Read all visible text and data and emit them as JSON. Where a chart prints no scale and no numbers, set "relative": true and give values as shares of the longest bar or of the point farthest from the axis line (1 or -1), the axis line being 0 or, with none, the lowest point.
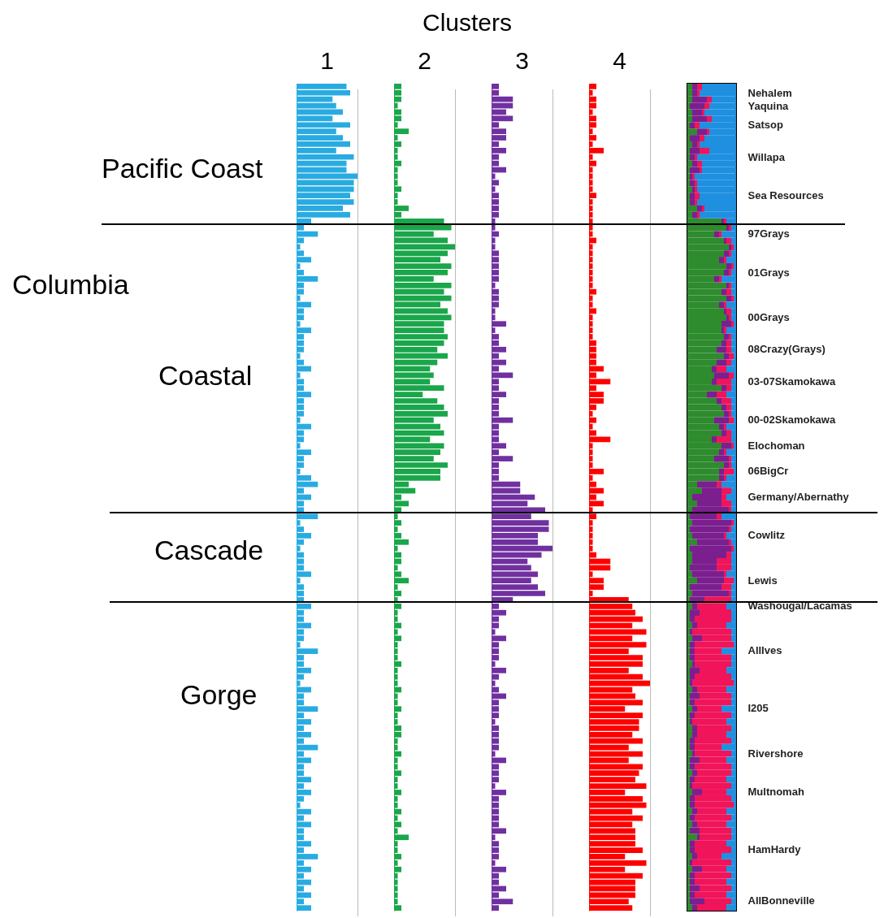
{
  "chart_data": [
    {
      "type": "bar",
      "orientation": "horizontal",
      "relative": true,
      "tick_labels": false,
      "title": "1",
      "color": "#29abe2",
      "annotations": [
        "Clusters",
        "Pacific Coast",
        "Columbia",
        "Coastal",
        "Cascade",
        "Gorge"
      ],
      "categories": [
        null,
        null,
        null,
        null,
        null,
        null,
        null,
        null,
        null,
        null,
        null,
        null,
        null,
        null,
        null,
        null,
        null,
        null,
        null,
        null,
        null,
        null,
        null,
        null,
        null,
        null,
        null,
        null,
        null,
        null,
        null,
        null,
        null,
        null,
        null,
        null,
        null,
        null,
        null,
        null,
        null,
        null,
        null,
        null,
        null,
        null,
        null,
        null,
        null,
        null,
        null,
        null,
        null,
        null,
        null,
        null,
        null,
        null,
        null,
        null,
        null,
        null,
        null,
        null,
        null,
        null,
        null,
        null,
        null,
        null,
        null,
        null,
        null,
        null,
        null,
        null,
        null,
        null,
        null,
        null,
        null,
        null,
        null,
        null,
        null,
        null,
        null,
        null,
        null,
        null,
        null,
        null,
        null,
        null,
        null,
        null,
        null,
        null,
        null,
        null,
        null,
        null,
        null,
        null,
        null,
        null,
        null,
        null,
        null,
        null,
        null,
        null,
        null,
        null,
        null,
        null,
        null,
        null,
        null,
        null,
        null,
        null,
        null,
        null,
        null,
        null,
        null,
        null,
        null
      ],
      "values": [
        0.82,
        0.88,
        0.59,
        0.65,
        0.76,
        0.59,
        0.88,
        0.65,
        0.76,
        0.88,
        0.65,
        0.94,
        0.82,
        0.82,
        1,
        0.94,
        0.94,
        0.88,
        0.94,
        0.76,
        0.88,
        0.24,
        0.12,
        0.35,
        0.12,
        0.06,
        0.12,
        0.24,
        0.06,
        0.12,
        0.35,
        0.12,
        0.12,
        0.06,
        0.24,
        0.12,
        0.12,
        0.06,
        0.24,
        0.12,
        0.12,
        0.12,
        0.06,
        0.12,
        0.24,
        0.06,
        0.12,
        0.12,
        0.24,
        0.12,
        0.12,
        0.12,
        0.06,
        0.24,
        0.12,
        0.12,
        0.06,
        0.24,
        0.12,
        0.12,
        0.06,
        0.24,
        0.35,
        0.12,
        0.24,
        0.12,
        0.12,
        0.35,
        0.06,
        0.12,
        0.24,
        0.12,
        0.06,
        0.12,
        0.12,
        0.12,
        0.24,
        0.06,
        0.12,
        0.12,
        0.12,
        0.24,
        0.12,
        0.12,
        0.24,
        0.12,
        0.12,
        0.06,
        0.35,
        0.12,
        0.12,
        0.24,
        0.12,
        0.06,
        0.24,
        0.12,
        0.12,
        0.35,
        0.12,
        0.24,
        0.12,
        0.24,
        0.12,
        0.35,
        0.12,
        0.24,
        0.12,
        0.12,
        0.24,
        0.12,
        0.24,
        0.12,
        0.06,
        0.24,
        0.12,
        0.24,
        0.12,
        0.12,
        0.24,
        0.12,
        0.35,
        0.12,
        0.24,
        0.12,
        0.24,
        0.12,
        0.24,
        0.12,
        0.24
      ]
    },
    {
      "type": "bar",
      "orientation": "horizontal",
      "relative": true,
      "tick_labels": false,
      "title": "2",
      "color": "#1aa64a",
      "categories": [
        null,
        null,
        null,
        null,
        null,
        null,
        null,
        null,
        null,
        null,
        null,
        null,
        null,
        null,
        null,
        null,
        null,
        null,
        null,
        null,
        null,
        null,
        null,
        null,
        null,
        null,
        null,
        null,
        null,
        null,
        null,
        null,
        null,
        null,
        null,
        null,
        null,
        null,
        null,
        null,
        null,
        null,
        null,
        null,
        null,
        null,
        null,
        null,
        null,
        null,
        null,
        null,
        null,
        null,
        null,
        null,
        null,
        null,
        null,
        null,
        null,
        null,
        null,
        null,
        null,
        null,
        null,
        null,
        null,
        null,
        null,
        null,
        null,
        null,
        null,
        null,
        null,
        null,
        null,
        null,
        null,
        null,
        null,
        null,
        null,
        null,
        null,
        null,
        null,
        null,
        null,
        null,
        null,
        null,
        null,
        null,
        null,
        null,
        null,
        null,
        null,
        null,
        null,
        null,
        null,
        null,
        null,
        null,
        null,
        null,
        null,
        null,
        null,
        null,
        null,
        null,
        null,
        null,
        null,
        null,
        null,
        null,
        null,
        null,
        null,
        null,
        null,
        null,
        null
      ],
      "values": [
        0.12,
        0.12,
        0.12,
        0.06,
        0.12,
        0.12,
        0.06,
        0.24,
        0.06,
        0.12,
        0.06,
        0.06,
        0.12,
        0.06,
        0.06,
        0.06,
        0.12,
        0.06,
        0.06,
        0.24,
        0.12,
        0.82,
        0.94,
        0.65,
        0.88,
        1,
        0.88,
        0.76,
        0.94,
        0.88,
        0.65,
        0.94,
        0.82,
        0.94,
        0.76,
        0.88,
        0.94,
        0.82,
        0.82,
        0.88,
        0.82,
        0.71,
        0.88,
        0.71,
        0.59,
        0.65,
        0.59,
        0.82,
        0.47,
        0.71,
        0.82,
        0.88,
        0.65,
        0.76,
        0.82,
        0.59,
        0.82,
        0.76,
        0.65,
        0.88,
        0.76,
        0.76,
        0.24,
        0.35,
        0.12,
        0.24,
        0.12,
        0.06,
        0.12,
        0.06,
        0.12,
        0.24,
        0.06,
        0.12,
        0.12,
        0.06,
        0.12,
        0.24,
        0.06,
        0.12,
        0.06,
        0.12,
        0.06,
        0.06,
        0.12,
        0.06,
        0.12,
        0.06,
        0.06,
        0.06,
        0.12,
        0.06,
        0.06,
        0.06,
        0.12,
        0.06,
        0.06,
        0.12,
        0.06,
        0.06,
        0.12,
        0.12,
        0.06,
        0.06,
        0.12,
        0.06,
        0.06,
        0.12,
        0.06,
        0.06,
        0.12,
        0.06,
        0.06,
        0.12,
        0.06,
        0.12,
        0.06,
        0.24,
        0.06,
        0.06,
        0.12,
        0.06,
        0.12,
        0.06,
        0.06,
        0.06,
        0.06,
        0.06,
        0.12
      ]
    },
    {
      "type": "bar",
      "orientation": "horizontal",
      "relative": true,
      "tick_labels": false,
      "title": "3",
      "color": "#7030a0",
      "categories": [
        null,
        null,
        null,
        null,
        null,
        null,
        null,
        null,
        null,
        null,
        null,
        null,
        null,
        null,
        null,
        null,
        null,
        null,
        null,
        null,
        null,
        null,
        null,
        null,
        null,
        null,
        null,
        null,
        null,
        null,
        null,
        null,
        null,
        null,
        null,
        null,
        null,
        null,
        null,
        null,
        null,
        null,
        null,
        null,
        null,
        null,
        null,
        null,
        null,
        null,
        null,
        null,
        null,
        null,
        null,
        null,
        null,
        null,
        null,
        null,
        null,
        null,
        null,
        null,
        null,
        null,
        null,
        null,
        null,
        null,
        null,
        null,
        null,
        null,
        null,
        null,
        null,
        null,
        null,
        null,
        null,
        null,
        null,
        null,
        null,
        null,
        null,
        null,
        null,
        null,
        null,
        null,
        null,
        null,
        null,
        null,
        null,
        null,
        null,
        null,
        null,
        null,
        null,
        null,
        null,
        null,
        null,
        null,
        null,
        null,
        null,
        null,
        null,
        null,
        null,
        null,
        null,
        null,
        null,
        null,
        null,
        null,
        null,
        null,
        null,
        null,
        null,
        null,
        null
      ],
      "values": [
        0.12,
        0.12,
        0.35,
        0.35,
        0.24,
        0.35,
        0.12,
        0.24,
        0.24,
        0.12,
        0.24,
        0.12,
        0.12,
        0.24,
        0.06,
        0.12,
        0.06,
        0.12,
        0.12,
        0.12,
        0.12,
        0.06,
        0.06,
        0.12,
        0.06,
        0.06,
        0.12,
        0.12,
        0.12,
        0.12,
        0.12,
        0.06,
        0.12,
        0.12,
        0.12,
        0.06,
        0.06,
        0.24,
        0.06,
        0.12,
        0.12,
        0.24,
        0.12,
        0.24,
        0.12,
        0.35,
        0.12,
        0.12,
        0.24,
        0.12,
        0.12,
        0.12,
        0.35,
        0.12,
        0.12,
        0.12,
        0.24,
        0.12,
        0.35,
        0.12,
        0.12,
        0.12,
        0.47,
        0.47,
        0.71,
        0.59,
        0.88,
        0.65,
        0.94,
        0.94,
        0.76,
        0.76,
        1,
        0.82,
        0.59,
        0.65,
        0.76,
        0.65,
        0.76,
        0.88,
        0.35,
        0.12,
        0.24,
        0.12,
        0.12,
        0.06,
        0.24,
        0.12,
        0.12,
        0.12,
        0.06,
        0.24,
        0.12,
        0.06,
        0.12,
        0.24,
        0.12,
        0.12,
        0.12,
        0.06,
        0.12,
        0.12,
        0.12,
        0.12,
        0.06,
        0.24,
        0.12,
        0.12,
        0.12,
        0.06,
        0.24,
        0.12,
        0.12,
        0.12,
        0.12,
        0.12,
        0.24,
        0.06,
        0.12,
        0.12,
        0.12,
        0.06,
        0.24,
        0.12,
        0.12,
        0.24,
        0.12,
        0.35,
        0.12
      ]
    },
    {
      "type": "bar",
      "orientation": "horizontal",
      "relative": true,
      "tick_labels": false,
      "title": "4",
      "color": "#ff0000",
      "categories": [
        null,
        null,
        null,
        null,
        null,
        null,
        null,
        null,
        null,
        null,
        null,
        null,
        null,
        null,
        null,
        null,
        null,
        null,
        null,
        null,
        null,
        null,
        null,
        null,
        null,
        null,
        null,
        null,
        null,
        null,
        null,
        null,
        null,
        null,
        null,
        null,
        null,
        null,
        null,
        null,
        null,
        null,
        null,
        null,
        null,
        null,
        null,
        null,
        null,
        null,
        null,
        null,
        null,
        null,
        null,
        null,
        null,
        null,
        null,
        null,
        null,
        null,
        null,
        null,
        null,
        null,
        null,
        null,
        null,
        null,
        null,
        null,
        null,
        null,
        null,
        null,
        null,
        null,
        null,
        null,
        null,
        null,
        null,
        null,
        null,
        null,
        null,
        null,
        null,
        null,
        null,
        null,
        null,
        null,
        null,
        null,
        null,
        null,
        null,
        null,
        null,
        null,
        null,
        null,
        null,
        null,
        null,
        null,
        null,
        null,
        null,
        null,
        null,
        null,
        null,
        null,
        null,
        null,
        null,
        null,
        null,
        null,
        null,
        null,
        null,
        null,
        null,
        null,
        null
      ],
      "values": [
        0.12,
        0.06,
        0.12,
        0.12,
        0.06,
        0.12,
        0.12,
        0.06,
        0.12,
        0.06,
        0.24,
        0.06,
        0.12,
        0.06,
        0.06,
        0.06,
        0.06,
        0.12,
        0.06,
        0.06,
        0.06,
        0.06,
        0.06,
        0.06,
        0.12,
        0.06,
        0.06,
        0.06,
        0.06,
        0.06,
        0.06,
        0.06,
        0.12,
        0.06,
        0.06,
        0.12,
        0.06,
        0.06,
        0.06,
        0.06,
        0.12,
        0.12,
        0.12,
        0.12,
        0.24,
        0.12,
        0.35,
        0.12,
        0.24,
        0.24,
        0.12,
        0.06,
        0.12,
        0.06,
        0.12,
        0.35,
        0.06,
        0.06,
        0.06,
        0.06,
        0.24,
        0.06,
        0.12,
        0.24,
        0.12,
        0.24,
        0.06,
        0.12,
        0.06,
        0.06,
        0.06,
        0.06,
        0.06,
        0.12,
        0.35,
        0.35,
        0.06,
        0.24,
        0.24,
        0.06,
        0.65,
        0.71,
        0.76,
        0.88,
        0.71,
        0.94,
        0.71,
        0.94,
        0.65,
        0.88,
        0.88,
        0.65,
        0.88,
        1,
        0.71,
        0.76,
        0.88,
        0.59,
        0.88,
        0.82,
        0.82,
        0.71,
        0.88,
        0.65,
        0.88,
        0.65,
        0.88,
        0.82,
        0.76,
        0.94,
        0.59,
        0.88,
        0.94,
        0.71,
        0.88,
        0.71,
        0.76,
        0.76,
        0.76,
        0.88,
        0.59,
        0.94,
        0.59,
        0.88,
        0.76,
        0.76,
        0.76,
        0.65,
        0.71
      ]
    },
    {
      "type": "bar",
      "orientation": "horizontal",
      "relative": true,
      "stacked": true,
      "tick_labels": "y",
      "categories": [
        null,
        "Nehalem",
        null,
        "Yaquina",
        null,
        null,
        "Satsop",
        null,
        null,
        null,
        null,
        "Willapa",
        null,
        null,
        null,
        null,
        null,
        "Sea Resources",
        null,
        null,
        null,
        null,
        null,
        "97Grays",
        null,
        null,
        null,
        null,
        null,
        "01Grays",
        null,
        null,
        null,
        null,
        null,
        null,
        "00Grays",
        null,
        null,
        null,
        null,
        "08Crazy(Grays)",
        null,
        null,
        null,
        null,
        "03-07Skamokawa",
        null,
        null,
        null,
        null,
        null,
        "00-02Skamokawa",
        null,
        null,
        null,
        "Elochoman",
        null,
        null,
        null,
        "06BigCr",
        null,
        null,
        null,
        "Germany/Abernathy",
        null,
        null,
        null,
        null,
        null,
        "Cowlitz",
        null,
        null,
        null,
        null,
        null,
        null,
        "Lewis",
        null,
        null,
        null,
        "Washougal/Lacamas",
        null,
        null,
        null,
        null,
        null,
        null,
        "AllIves",
        null,
        null,
        null,
        null,
        null,
        null,
        null,
        null,
        "I205",
        null,
        null,
        null,
        null,
        null,
        null,
        "Rivershore",
        null,
        null,
        null,
        null,
        null,
        "Multnomah",
        null,
        null,
        null,
        null,
        null,
        null,
        null,
        null,
        "HamHardy",
        null,
        null,
        null,
        null,
        null,
        null,
        null,
        "AllBonneville",
        null
      ],
      "series": [
        {
          "color": "#2e8b2e",
          "values": [
            0.1,
            0.1,
            0.1,
            0.05,
            0.1,
            0.1,
            0.05,
            0.2,
            0.05,
            0.1,
            0.05,
            0.05,
            0.1,
            0.05,
            0.05,
            0.05,
            0.1,
            0.05,
            0.05,
            0.2,
            0.1,
            0.7,
            0.8,
            0.55,
            0.75,
            0.85,
            0.75,
            0.65,
            0.8,
            0.75,
            0.55,
            0.8,
            0.7,
            0.8,
            0.65,
            0.75,
            0.8,
            0.7,
            0.7,
            0.75,
            0.7,
            0.6,
            0.75,
            0.6,
            0.5,
            0.55,
            0.5,
            0.7,
            0.4,
            0.6,
            0.7,
            0.75,
            0.55,
            0.65,
            0.7,
            0.5,
            0.7,
            0.65,
            0.55,
            0.75,
            0.65,
            0.65,
            0.2,
            0.3,
            0.1,
            0.2,
            0.1,
            0.05,
            0.1,
            0.05,
            0.1,
            0.2,
            0.05,
            0.1,
            0.1,
            0.05,
            0.1,
            0.2,
            0.05,
            0.1,
            0.05,
            0.1,
            0.05,
            0.05,
            0.1,
            0.05,
            0.1,
            0.05,
            0.05,
            0.05,
            0.1,
            0.05,
            0.05,
            0.05,
            0.1,
            0.05,
            0.05,
            0.1,
            0.05,
            0.05,
            0.1,
            0.1,
            0.05,
            0.05,
            0.1,
            0.05,
            0.05,
            0.1,
            0.05,
            0.05,
            0.1,
            0.05,
            0.05,
            0.1,
            0.05,
            0.1,
            0.05,
            0.2,
            0.05,
            0.05,
            0.1,
            0.05,
            0.1,
            0.05,
            0.05,
            0.05,
            0.05,
            0.05,
            0.1
          ]
        },
        {
          "color": "#7b1f8f",
          "values": [
            0.1,
            0.1,
            0.3,
            0.3,
            0.2,
            0.3,
            0.1,
            0.2,
            0.2,
            0.1,
            0.2,
            0.1,
            0.1,
            0.2,
            0.05,
            0.1,
            0.05,
            0.1,
            0.1,
            0.1,
            0.1,
            0.05,
            0.05,
            0.1,
            0.05,
            0.05,
            0.1,
            0.1,
            0.1,
            0.1,
            0.1,
            0.05,
            0.1,
            0.1,
            0.1,
            0.05,
            0.05,
            0.2,
            0.05,
            0.1,
            0.1,
            0.2,
            0.1,
            0.2,
            0.1,
            0.3,
            0.1,
            0.1,
            0.2,
            0.1,
            0.1,
            0.1,
            0.3,
            0.1,
            0.1,
            0.1,
            0.2,
            0.1,
            0.3,
            0.1,
            0.1,
            0.1,
            0.4,
            0.4,
            0.6,
            0.5,
            0.75,
            0.55,
            0.8,
            0.8,
            0.65,
            0.65,
            0.85,
            0.7,
            0.5,
            0.55,
            0.65,
            0.55,
            0.65,
            0.75,
            0.3,
            0.1,
            0.2,
            0.1,
            0.1,
            0.05,
            0.2,
            0.1,
            0.1,
            0.1,
            0.05,
            0.2,
            0.1,
            0.05,
            0.1,
            0.2,
            0.1,
            0.1,
            0.1,
            0.05,
            0.1,
            0.1,
            0.1,
            0.1,
            0.05,
            0.2,
            0.1,
            0.1,
            0.1,
            0.05,
            0.2,
            0.1,
            0.1,
            0.1,
            0.1,
            0.1,
            0.2,
            0.05,
            0.1,
            0.1,
            0.1,
            0.05,
            0.2,
            0.1,
            0.1,
            0.2,
            0.1,
            0.3,
            0.1
          ]
        },
        {
          "color": "#f0145a",
          "values": [
            0.1,
            0.05,
            0.1,
            0.1,
            0.05,
            0.1,
            0.1,
            0.05,
            0.1,
            0.05,
            0.2,
            0.05,
            0.1,
            0.05,
            0.05,
            0.05,
            0.05,
            0.1,
            0.05,
            0.05,
            0.05,
            0.05,
            0.05,
            0.05,
            0.1,
            0.05,
            0.05,
            0.05,
            0.05,
            0.05,
            0.05,
            0.05,
            0.1,
            0.05,
            0.05,
            0.1,
            0.05,
            0.05,
            0.05,
            0.05,
            0.1,
            0.1,
            0.1,
            0.1,
            0.2,
            0.1,
            0.3,
            0.1,
            0.2,
            0.2,
            0.1,
            0.05,
            0.1,
            0.05,
            0.1,
            0.3,
            0.05,
            0.05,
            0.05,
            0.05,
            0.2,
            0.05,
            0.1,
            0.2,
            0.1,
            0.2,
            0.05,
            0.1,
            0.05,
            0.05,
            0.05,
            0.05,
            0.05,
            0.1,
            0.3,
            0.3,
            0.05,
            0.2,
            0.2,
            0.05,
            0.55,
            0.6,
            0.65,
            0.75,
            0.6,
            0.8,
            0.6,
            0.8,
            0.55,
            0.75,
            0.75,
            0.55,
            0.75,
            0.85,
            0.6,
            0.65,
            0.75,
            0.5,
            0.75,
            0.7,
            0.7,
            0.6,
            0.75,
            0.55,
            0.75,
            0.55,
            0.75,
            0.7,
            0.65,
            0.8,
            0.5,
            0.75,
            0.8,
            0.6,
            0.75,
            0.6,
            0.65,
            0.65,
            0.65,
            0.75,
            0.5,
            0.8,
            0.5,
            0.75,
            0.65,
            0.65,
            0.65,
            0.55,
            0.6
          ]
        },
        {
          "color": "#1f8fe0",
          "values": [
            0.7,
            0.75,
            0.5,
            0.55,
            0.65,
            0.5,
            0.75,
            0.55,
            0.65,
            0.75,
            0.55,
            0.8,
            0.7,
            0.7,
            0.85,
            0.8,
            0.8,
            0.75,
            0.8,
            0.65,
            0.75,
            0.2,
            0.1,
            0.3,
            0.1,
            0.05,
            0.1,
            0.2,
            0.05,
            0.1,
            0.3,
            0.1,
            0.1,
            0.05,
            0.2,
            0.1,
            0.1,
            0.05,
            0.2,
            0.1,
            0.1,
            0.1,
            0.05,
            0.1,
            0.2,
            0.05,
            0.1,
            0.1,
            0.2,
            0.1,
            0.1,
            0.1,
            0.05,
            0.2,
            0.1,
            0.1,
            0.05,
            0.2,
            0.1,
            0.1,
            0.05,
            0.2,
            0.3,
            0.1,
            0.2,
            0.1,
            0.1,
            0.3,
            0.05,
            0.1,
            0.2,
            0.1,
            0.05,
            0.1,
            0.1,
            0.1,
            0.2,
            0.05,
            0.1,
            0.1,
            0.1,
            0.2,
            0.1,
            0.1,
            0.2,
            0.1,
            0.1,
            0.05,
            0.3,
            0.1,
            0.1,
            0.2,
            0.1,
            0.05,
            0.2,
            0.1,
            0.1,
            0.3,
            0.1,
            0.2,
            0.1,
            0.2,
            0.1,
            0.3,
            0.1,
            0.2,
            0.1,
            0.1,
            0.2,
            0.1,
            0.2,
            0.1,
            0.05,
            0.2,
            0.1,
            0.2,
            0.1,
            0.1,
            0.2,
            0.1,
            0.3,
            0.1,
            0.2,
            0.1,
            0.2,
            0.1,
            0.2,
            0.1,
            0.2
          ]
        }
      ]
    }
  ]
}
